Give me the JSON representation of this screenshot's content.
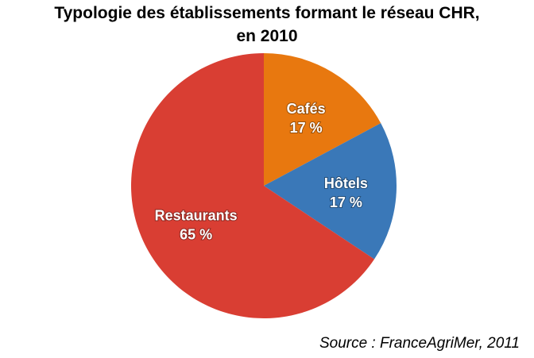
{
  "chart_data": {
    "type": "pie",
    "title_line1": "Typologie des établissements formant le réseau CHR,",
    "title_line2": "en 2010",
    "slices": [
      {
        "label": "Cafés",
        "value": 17,
        "value_label": "17 %",
        "color": "#E8780F"
      },
      {
        "label": "Hôtels",
        "value": 17,
        "value_label": "17 %",
        "color": "#3A78B8"
      },
      {
        "label": "Restaurants",
        "value": 65,
        "value_label": "65 %",
        "color": "#D93E33"
      }
    ],
    "start": "top",
    "direction": "clockwise",
    "source": "Source : FranceAgriMer, 2011"
  }
}
